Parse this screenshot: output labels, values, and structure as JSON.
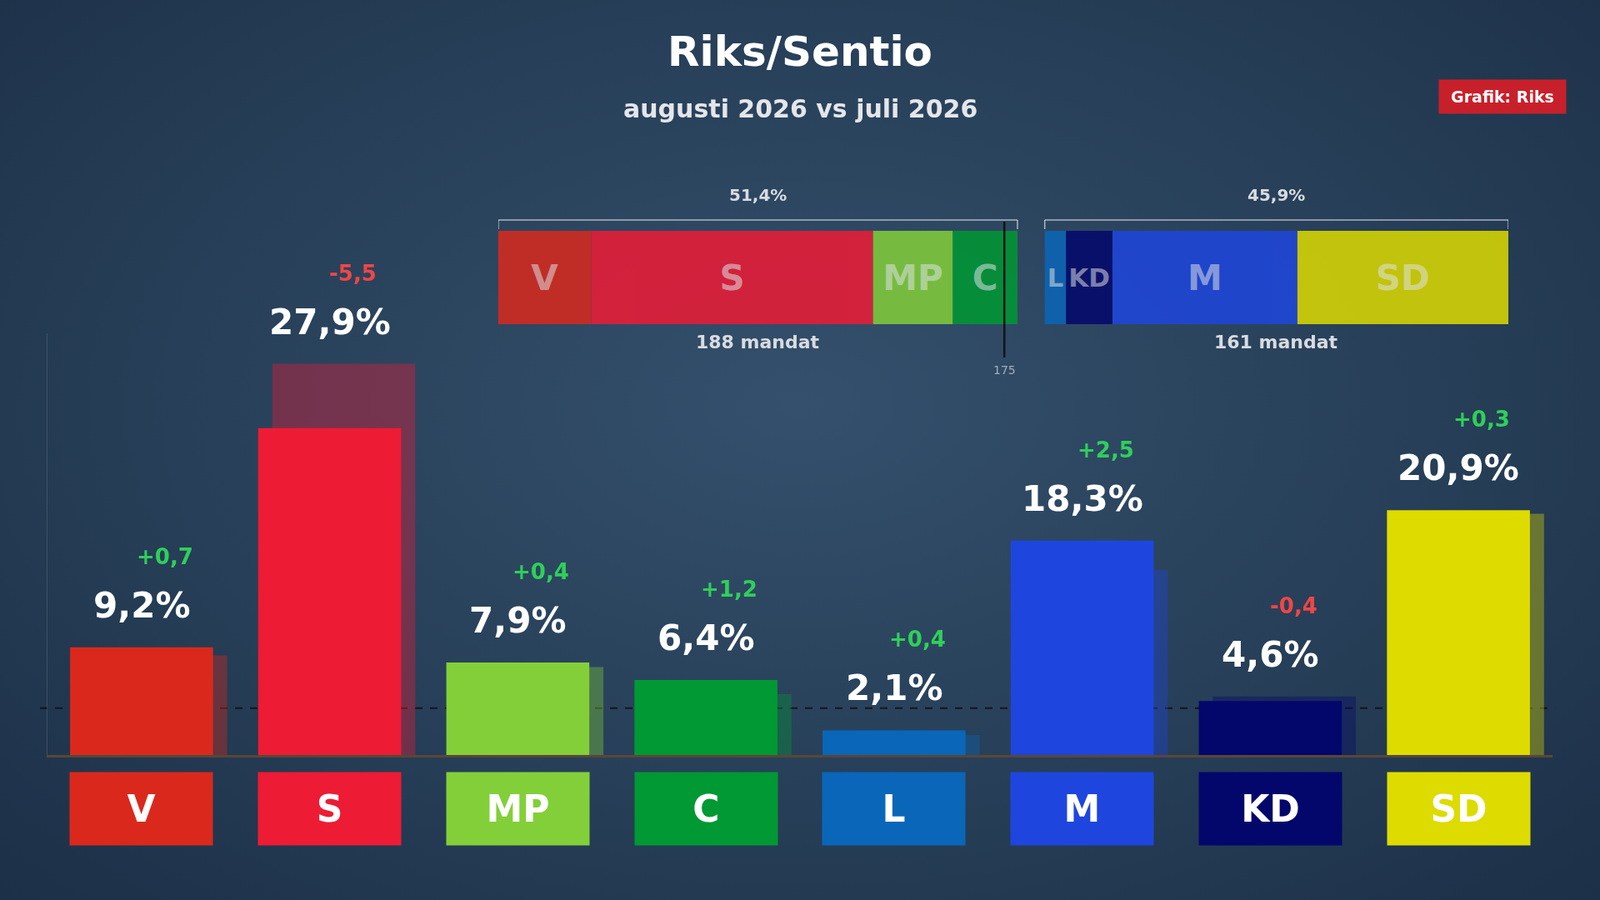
{
  "chart_data": {
    "type": "bar",
    "title": "Riks/Sentio",
    "subtitle": "augusti 2026 vs juli 2026",
    "credit": "Grafik: Riks",
    "categories": [
      "V",
      "S",
      "MP",
      "C",
      "L",
      "M",
      "KD",
      "SD"
    ],
    "values": [
      9.2,
      27.9,
      7.9,
      6.4,
      2.1,
      18.3,
      4.6,
      20.9
    ],
    "value_labels": [
      "9,2%",
      "27,9%",
      "7,9%",
      "6,4%",
      "2,1%",
      "18,3%",
      "4,6%",
      "20,9%"
    ],
    "previous_values": [
      8.5,
      33.4,
      7.5,
      5.2,
      1.7,
      15.8,
      5.0,
      20.6
    ],
    "changes": [
      0.7,
      -5.5,
      0.4,
      1.2,
      0.4,
      2.5,
      -0.4,
      0.3
    ],
    "change_labels": [
      "+0,7",
      "-5,5",
      "+0,4",
      "+1,2",
      "+0,4",
      "+2,5",
      "-0,4",
      "+0,3"
    ],
    "colors": [
      "#da291c",
      "#ee1b35",
      "#83cf39",
      "#009933",
      "#0a66b8",
      "#1e46de",
      "#03076b",
      "#dedb00"
    ],
    "data_labels": true,
    "ylim": [
      0,
      36
    ],
    "yticks": [],
    "tick_labels": false,
    "grid": false,
    "threshold": 4,
    "seat_bar": {
      "type": "bar",
      "orientation": "horizontal",
      "stacked": true,
      "xlim": [
        0,
        100
      ],
      "xticks": [],
      "blocs": [
        {
          "parties": [
            "V",
            "S",
            "MP",
            "C"
          ],
          "share": 51.4,
          "share_label": "51,4%",
          "seats_label": "188 mandat"
        },
        {
          "parties": [
            "SD",
            "M",
            "KD",
            "L"
          ],
          "share": 45.9,
          "share_label": "45,9%",
          "seats_label": "161 mandat"
        }
      ],
      "majority_line": {
        "value": 50.1,
        "label": "175"
      }
    }
  }
}
